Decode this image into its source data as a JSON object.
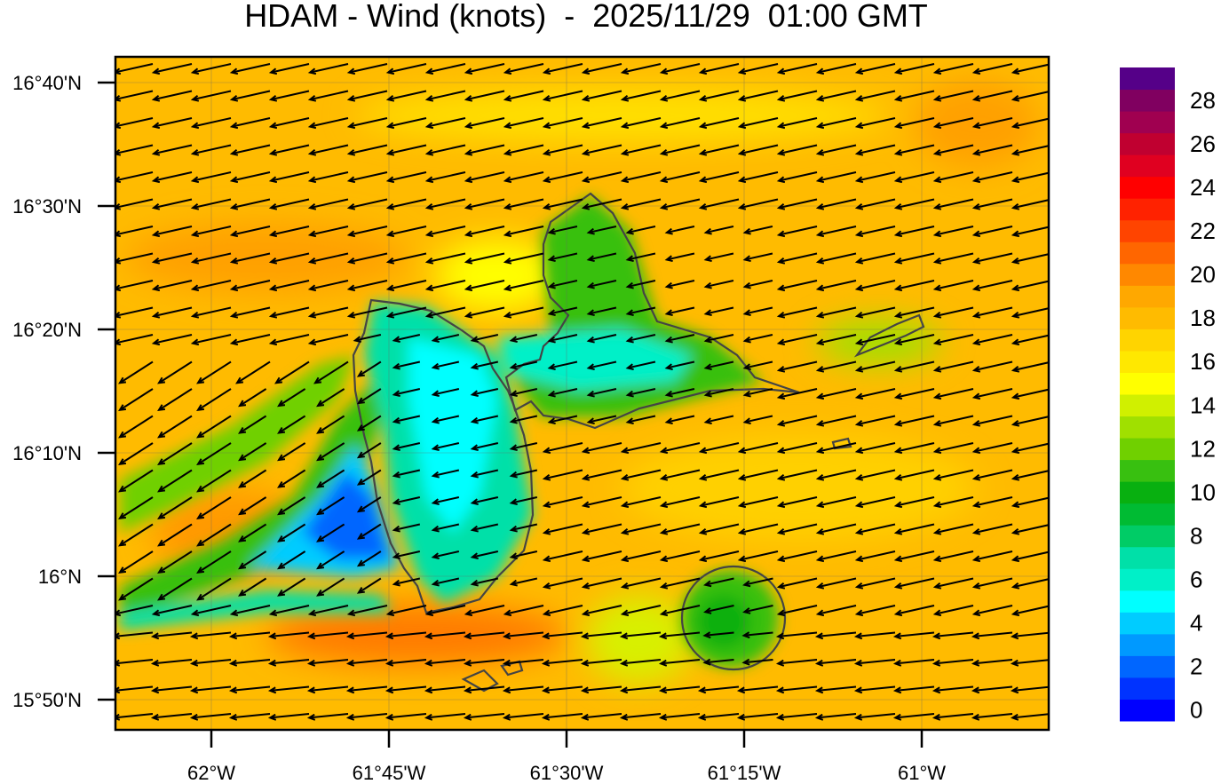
{
  "title": "HDAM - Wind (knots)  -  2025/11/29  01:00 GMT",
  "map": {
    "lon_ticks": [
      "62°W",
      "61°45'W",
      "61°30'W",
      "61°15'W",
      "61°W"
    ],
    "lat_ticks": [
      "16°40'N",
      "16°30'N",
      "16°20'N",
      "16°10'N",
      "16°N",
      "15°50'N"
    ],
    "field": "wind speed (knots)",
    "prevailing_wind": "easterly / east-northeasterly",
    "background_color": "#ffbb00",
    "coastline_color": "#444444"
  },
  "colorbar": {
    "labels": [
      "0",
      "2",
      "4",
      "6",
      "8",
      "10",
      "12",
      "14",
      "16",
      "18",
      "20",
      "22",
      "24",
      "26",
      "28"
    ],
    "min": 0,
    "max": 30,
    "step": 1,
    "colors": [
      "#0000ff",
      "#0033ff",
      "#0066ff",
      "#0099ff",
      "#00ccff",
      "#00ffff",
      "#00f0c8",
      "#00e0a8",
      "#00cc66",
      "#00bb33",
      "#08b010",
      "#38c010",
      "#70d000",
      "#a0e000",
      "#d0f000",
      "#ffff00",
      "#ffe800",
      "#ffd400",
      "#ffbb00",
      "#ffa800",
      "#ff8800",
      "#ff6600",
      "#ff4400",
      "#ff2200",
      "#ff0000",
      "#e00020",
      "#c00030",
      "#a00050",
      "#800060",
      "#550088"
    ]
  }
}
